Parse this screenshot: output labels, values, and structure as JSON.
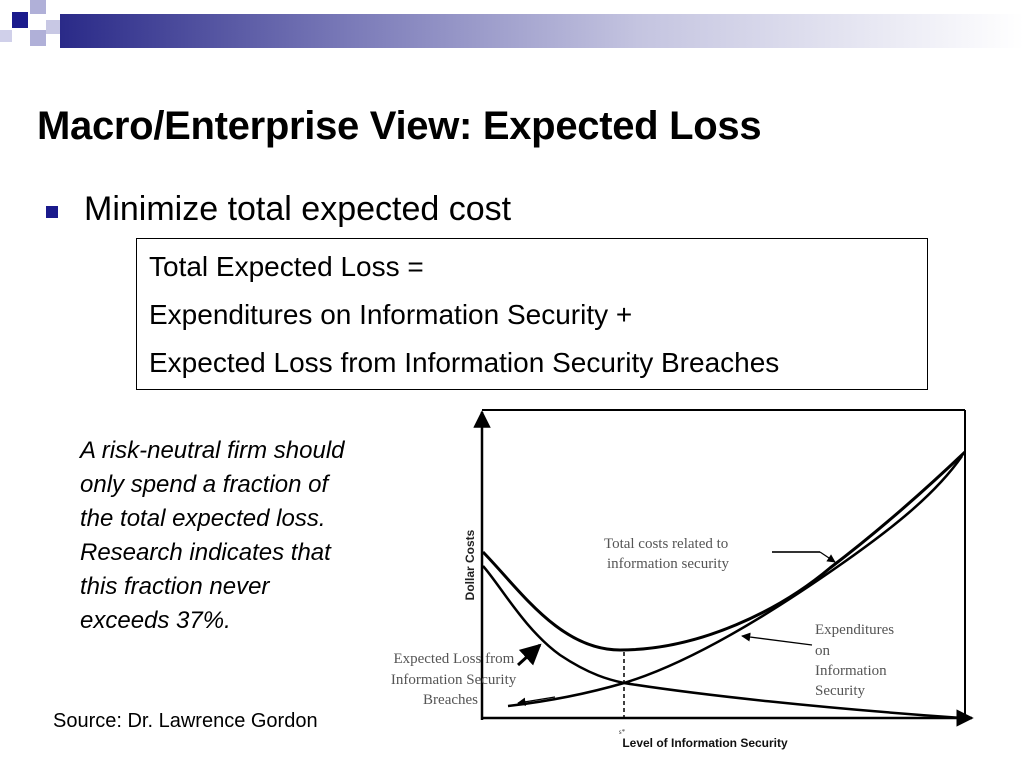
{
  "slide": {
    "title": "Macro/Enterprise View: Expected Loss",
    "bullet": "Minimize total expected cost",
    "formula": [
      "Total Expected Loss =",
      "Expenditures on Information Security +",
      "Expected Loss from Information Security Breaches"
    ],
    "note": "A risk-neutral firm should only spend a fraction of the total expected loss. Research indicates that this fraction never exceeds 37%.",
    "source": "Source:  Dr. Lawrence Gordon",
    "colors": {
      "accent": "#1a1a8c",
      "band_dark": "#2a2a88",
      "band_light": "#c4c4e0",
      "chart_text": "#555555"
    }
  },
  "chart_data": {
    "type": "line",
    "title": "",
    "xlabel": "Level of Information Security",
    "ylabel": "Dollar Costs",
    "x_marker": "s*",
    "annotations": [
      "Total costs related to information security",
      "Expenditures on Information Security",
      "Expected Loss from Information Security Breaches"
    ],
    "series": [
      {
        "name": "Total costs related to information security",
        "shape": "U-shaped, minimum at s*"
      },
      {
        "name": "Expenditures on Information Security",
        "shape": "increasing with security level"
      },
      {
        "name": "Expected Loss from Information Security Breaches",
        "shape": "decreasing with security level"
      }
    ]
  }
}
